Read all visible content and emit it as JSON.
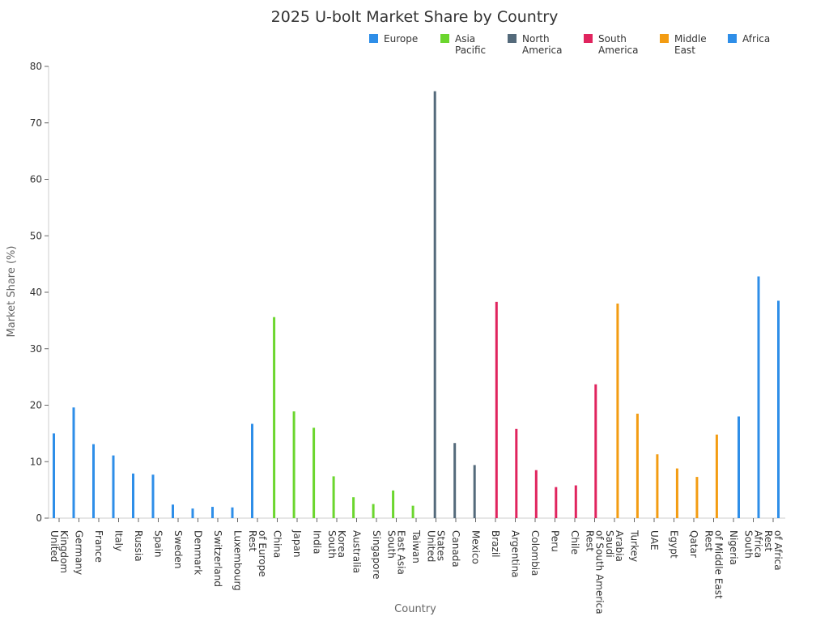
{
  "chart_data": {
    "type": "bar",
    "title": "2025 U-bolt Market Share by Country",
    "xlabel": "Country",
    "ylabel": "Market Share (%)",
    "ylim": [
      0,
      80
    ],
    "yticks": [
      0,
      10,
      20,
      30,
      40,
      50,
      60,
      70,
      80
    ],
    "legend_position": "top-right",
    "series": [
      {
        "name": "Europe",
        "color": "#2e8ee8"
      },
      {
        "name": "Asia Pacific",
        "color": "#6bd62e"
      },
      {
        "name": "North America",
        "color": "#546a7b"
      },
      {
        "name": "South America",
        "color": "#e0245e"
      },
      {
        "name": "Middle East",
        "color": "#f39c12"
      },
      {
        "name": "Africa",
        "color": "#2e8ee8"
      }
    ],
    "points": [
      {
        "category": "United Kingdom",
        "series": 0,
        "value": 15.0
      },
      {
        "category": "Germany",
        "series": 0,
        "value": 19.6
      },
      {
        "category": "France",
        "series": 0,
        "value": 13.1
      },
      {
        "category": "Italy",
        "series": 0,
        "value": 11.1
      },
      {
        "category": "Russia",
        "series": 0,
        "value": 7.9
      },
      {
        "category": "Spain",
        "series": 0,
        "value": 7.7
      },
      {
        "category": "Sweden",
        "series": 0,
        "value": 2.4
      },
      {
        "category": "Denmark",
        "series": 0,
        "value": 1.7
      },
      {
        "category": "Switzerland",
        "series": 0,
        "value": 2.0
      },
      {
        "category": "Luxembourg",
        "series": 0,
        "value": 1.9
      },
      {
        "category": "Rest of Europe",
        "series": 0,
        "value": 16.7
      },
      {
        "category": "China",
        "series": 1,
        "value": 35.6
      },
      {
        "category": "Japan",
        "series": 1,
        "value": 18.9
      },
      {
        "category": "India",
        "series": 1,
        "value": 16.0
      },
      {
        "category": "South Korea",
        "series": 1,
        "value": 7.4
      },
      {
        "category": "Australia",
        "series": 1,
        "value": 3.7
      },
      {
        "category": "Singapore",
        "series": 1,
        "value": 2.5
      },
      {
        "category": "South East Asia",
        "series": 1,
        "value": 4.9
      },
      {
        "category": "Taiwan",
        "series": 1,
        "value": 2.2
      },
      {
        "category": "United States",
        "series": 2,
        "value": 75.6
      },
      {
        "category": "Canada",
        "series": 2,
        "value": 13.3
      },
      {
        "category": "Mexico",
        "series": 2,
        "value": 9.4
      },
      {
        "category": "Brazil",
        "series": 3,
        "value": 38.3
      },
      {
        "category": "Argentina",
        "series": 3,
        "value": 15.8
      },
      {
        "category": "Colombia",
        "series": 3,
        "value": 8.5
      },
      {
        "category": "Peru",
        "series": 3,
        "value": 5.5
      },
      {
        "category": "Chile",
        "series": 3,
        "value": 5.8
      },
      {
        "category": "Rest of South America",
        "series": 3,
        "value": 23.7
      },
      {
        "category": "Saudi Arabia",
        "series": 4,
        "value": 38.0
      },
      {
        "category": "Turkey",
        "series": 4,
        "value": 18.5
      },
      {
        "category": "UAE",
        "series": 4,
        "value": 11.3
      },
      {
        "category": "Egypt",
        "series": 4,
        "value": 8.8
      },
      {
        "category": "Qatar",
        "series": 4,
        "value": 7.3
      },
      {
        "category": "Rest of Middle East",
        "series": 4,
        "value": 14.8
      },
      {
        "category": "Nigeria",
        "series": 5,
        "value": 18.0
      },
      {
        "category": "South Africa",
        "series": 5,
        "value": 42.8
      },
      {
        "category": "Rest of Africa",
        "series": 5,
        "value": 38.5
      }
    ]
  }
}
